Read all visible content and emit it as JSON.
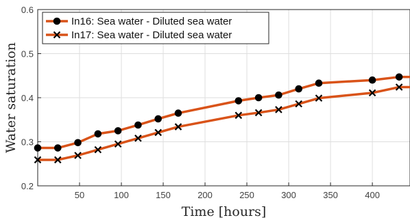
{
  "chart_data": {
    "type": "line",
    "xlabel": "Time [hours]",
    "ylabel": "Water saturation",
    "xlim": [
      0,
      445
    ],
    "ylim": [
      0.2,
      0.6
    ],
    "xticks": [
      50,
      100,
      150,
      200,
      250,
      300,
      350,
      400
    ],
    "yticks": [
      0.2,
      0.3,
      0.4,
      0.5,
      0.6
    ],
    "xtick_labels": [
      "50",
      "100",
      "150",
      "200",
      "250",
      "300",
      "350",
      "400"
    ],
    "ytick_labels": [
      "0.2",
      "0.3",
      "0.4",
      "0.5",
      "0.6"
    ],
    "grid": true,
    "legend_position": "top-left",
    "line_color": "#D95319",
    "series": [
      {
        "name": "In16: Sea water - Diluted sea water",
        "marker": "circle",
        "x": [
          0,
          24,
          48,
          72,
          96,
          120,
          144,
          168,
          240,
          264,
          288,
          312,
          336,
          400,
          432,
          445
        ],
        "y": [
          0.286,
          0.286,
          0.298,
          0.318,
          0.325,
          0.338,
          0.352,
          0.365,
          0.393,
          0.4,
          0.406,
          0.42,
          0.433,
          0.44,
          0.447,
          0.447
        ]
      },
      {
        "name": "In17: Sea water - Diluted sea water",
        "marker": "x",
        "x": [
          0,
          24,
          48,
          72,
          96,
          120,
          144,
          168,
          240,
          264,
          288,
          312,
          336,
          400,
          432,
          445
        ],
        "y": [
          0.259,
          0.259,
          0.269,
          0.282,
          0.295,
          0.308,
          0.321,
          0.334,
          0.36,
          0.366,
          0.373,
          0.386,
          0.399,
          0.411,
          0.424,
          0.424
        ]
      }
    ]
  }
}
